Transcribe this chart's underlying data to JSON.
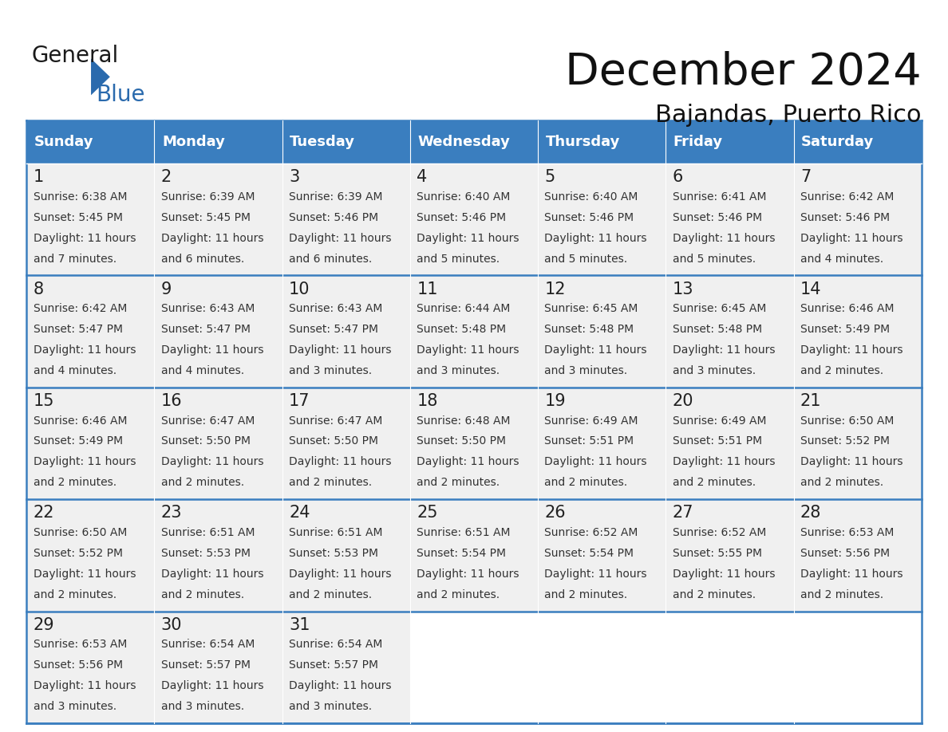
{
  "title": "December 2024",
  "subtitle": "Bajandas, Puerto Rico",
  "header_color": "#3a7ebf",
  "header_text_color": "#ffffff",
  "cell_bg_color": "#f0f0f0",
  "cell_border_color": "#3a7ebf",
  "separator_color": "#3a7ebf",
  "day_names": [
    "Sunday",
    "Monday",
    "Tuesday",
    "Wednesday",
    "Thursday",
    "Friday",
    "Saturday"
  ],
  "days": [
    {
      "day": 1,
      "col": 0,
      "row": 0,
      "sunrise": "6:38 AM",
      "sunset": "5:45 PM",
      "daylight_h": "11 hours",
      "daylight_m": "and 7 minutes."
    },
    {
      "day": 2,
      "col": 1,
      "row": 0,
      "sunrise": "6:39 AM",
      "sunset": "5:45 PM",
      "daylight_h": "11 hours",
      "daylight_m": "and 6 minutes."
    },
    {
      "day": 3,
      "col": 2,
      "row": 0,
      "sunrise": "6:39 AM",
      "sunset": "5:46 PM",
      "daylight_h": "11 hours",
      "daylight_m": "and 6 minutes."
    },
    {
      "day": 4,
      "col": 3,
      "row": 0,
      "sunrise": "6:40 AM",
      "sunset": "5:46 PM",
      "daylight_h": "11 hours",
      "daylight_m": "and 5 minutes."
    },
    {
      "day": 5,
      "col": 4,
      "row": 0,
      "sunrise": "6:40 AM",
      "sunset": "5:46 PM",
      "daylight_h": "11 hours",
      "daylight_m": "and 5 minutes."
    },
    {
      "day": 6,
      "col": 5,
      "row": 0,
      "sunrise": "6:41 AM",
      "sunset": "5:46 PM",
      "daylight_h": "11 hours",
      "daylight_m": "and 5 minutes."
    },
    {
      "day": 7,
      "col": 6,
      "row": 0,
      "sunrise": "6:42 AM",
      "sunset": "5:46 PM",
      "daylight_h": "11 hours",
      "daylight_m": "and 4 minutes."
    },
    {
      "day": 8,
      "col": 0,
      "row": 1,
      "sunrise": "6:42 AM",
      "sunset": "5:47 PM",
      "daylight_h": "11 hours",
      "daylight_m": "and 4 minutes."
    },
    {
      "day": 9,
      "col": 1,
      "row": 1,
      "sunrise": "6:43 AM",
      "sunset": "5:47 PM",
      "daylight_h": "11 hours",
      "daylight_m": "and 4 minutes."
    },
    {
      "day": 10,
      "col": 2,
      "row": 1,
      "sunrise": "6:43 AM",
      "sunset": "5:47 PM",
      "daylight_h": "11 hours",
      "daylight_m": "and 3 minutes."
    },
    {
      "day": 11,
      "col": 3,
      "row": 1,
      "sunrise": "6:44 AM",
      "sunset": "5:48 PM",
      "daylight_h": "11 hours",
      "daylight_m": "and 3 minutes."
    },
    {
      "day": 12,
      "col": 4,
      "row": 1,
      "sunrise": "6:45 AM",
      "sunset": "5:48 PM",
      "daylight_h": "11 hours",
      "daylight_m": "and 3 minutes."
    },
    {
      "day": 13,
      "col": 5,
      "row": 1,
      "sunrise": "6:45 AM",
      "sunset": "5:48 PM",
      "daylight_h": "11 hours",
      "daylight_m": "and 3 minutes."
    },
    {
      "day": 14,
      "col": 6,
      "row": 1,
      "sunrise": "6:46 AM",
      "sunset": "5:49 PM",
      "daylight_h": "11 hours",
      "daylight_m": "and 2 minutes."
    },
    {
      "day": 15,
      "col": 0,
      "row": 2,
      "sunrise": "6:46 AM",
      "sunset": "5:49 PM",
      "daylight_h": "11 hours",
      "daylight_m": "and 2 minutes."
    },
    {
      "day": 16,
      "col": 1,
      "row": 2,
      "sunrise": "6:47 AM",
      "sunset": "5:50 PM",
      "daylight_h": "11 hours",
      "daylight_m": "and 2 minutes."
    },
    {
      "day": 17,
      "col": 2,
      "row": 2,
      "sunrise": "6:47 AM",
      "sunset": "5:50 PM",
      "daylight_h": "11 hours",
      "daylight_m": "and 2 minutes."
    },
    {
      "day": 18,
      "col": 3,
      "row": 2,
      "sunrise": "6:48 AM",
      "sunset": "5:50 PM",
      "daylight_h": "11 hours",
      "daylight_m": "and 2 minutes."
    },
    {
      "day": 19,
      "col": 4,
      "row": 2,
      "sunrise": "6:49 AM",
      "sunset": "5:51 PM",
      "daylight_h": "11 hours",
      "daylight_m": "and 2 minutes."
    },
    {
      "day": 20,
      "col": 5,
      "row": 2,
      "sunrise": "6:49 AM",
      "sunset": "5:51 PM",
      "daylight_h": "11 hours",
      "daylight_m": "and 2 minutes."
    },
    {
      "day": 21,
      "col": 6,
      "row": 2,
      "sunrise": "6:50 AM",
      "sunset": "5:52 PM",
      "daylight_h": "11 hours",
      "daylight_m": "and 2 minutes."
    },
    {
      "day": 22,
      "col": 0,
      "row": 3,
      "sunrise": "6:50 AM",
      "sunset": "5:52 PM",
      "daylight_h": "11 hours",
      "daylight_m": "and 2 minutes."
    },
    {
      "day": 23,
      "col": 1,
      "row": 3,
      "sunrise": "6:51 AM",
      "sunset": "5:53 PM",
      "daylight_h": "11 hours",
      "daylight_m": "and 2 minutes."
    },
    {
      "day": 24,
      "col": 2,
      "row": 3,
      "sunrise": "6:51 AM",
      "sunset": "5:53 PM",
      "daylight_h": "11 hours",
      "daylight_m": "and 2 minutes."
    },
    {
      "day": 25,
      "col": 3,
      "row": 3,
      "sunrise": "6:51 AM",
      "sunset": "5:54 PM",
      "daylight_h": "11 hours",
      "daylight_m": "and 2 minutes."
    },
    {
      "day": 26,
      "col": 4,
      "row": 3,
      "sunrise": "6:52 AM",
      "sunset": "5:54 PM",
      "daylight_h": "11 hours",
      "daylight_m": "and 2 minutes."
    },
    {
      "day": 27,
      "col": 5,
      "row": 3,
      "sunrise": "6:52 AM",
      "sunset": "5:55 PM",
      "daylight_h": "11 hours",
      "daylight_m": "and 2 minutes."
    },
    {
      "day": 28,
      "col": 6,
      "row": 3,
      "sunrise": "6:53 AM",
      "sunset": "5:56 PM",
      "daylight_h": "11 hours",
      "daylight_m": "and 2 minutes."
    },
    {
      "day": 29,
      "col": 0,
      "row": 4,
      "sunrise": "6:53 AM",
      "sunset": "5:56 PM",
      "daylight_h": "11 hours",
      "daylight_m": "and 3 minutes."
    },
    {
      "day": 30,
      "col": 1,
      "row": 4,
      "sunrise": "6:54 AM",
      "sunset": "5:57 PM",
      "daylight_h": "11 hours",
      "daylight_m": "and 3 minutes."
    },
    {
      "day": 31,
      "col": 2,
      "row": 4,
      "sunrise": "6:54 AM",
      "sunset": "5:57 PM",
      "daylight_h": "11 hours",
      "daylight_m": "and 3 minutes."
    }
  ],
  "num_rows": 5,
  "logo_general_color": "#1a1a1a",
  "logo_blue_color": "#2a6aad",
  "title_fontsize": 40,
  "subtitle_fontsize": 22,
  "header_fontsize": 13,
  "day_num_fontsize": 15,
  "cell_text_fontsize": 10
}
